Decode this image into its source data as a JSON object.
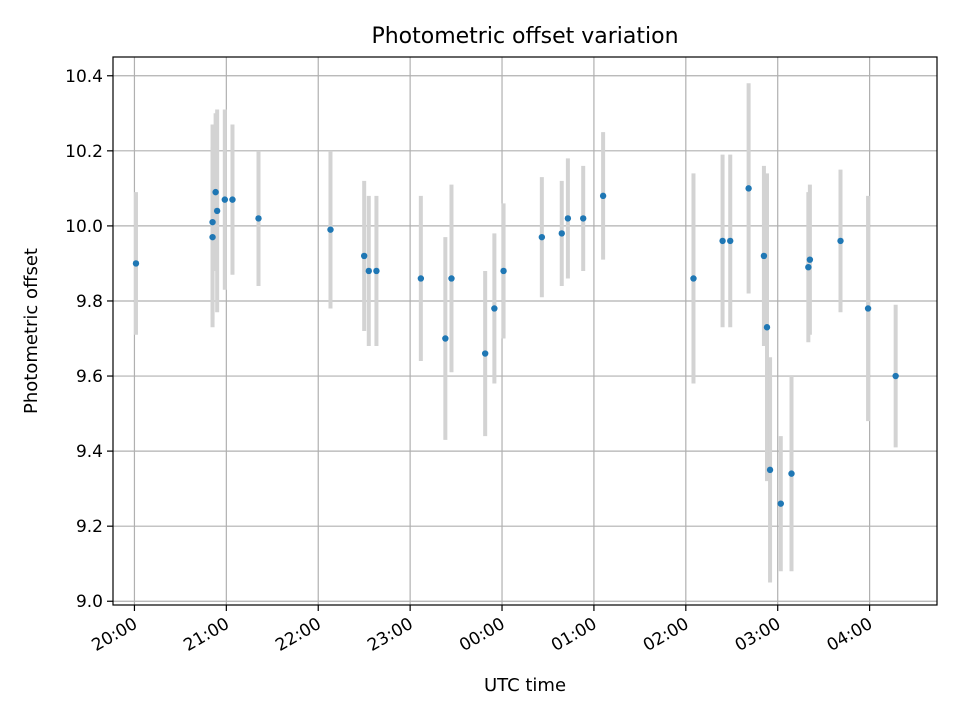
{
  "chart_data": {
    "type": "scatter",
    "title": "Photometric offset variation",
    "xlabel": "UTC time",
    "ylabel": "Photometric offset",
    "x_axis": {
      "start": "19:46",
      "end": "04:44",
      "ticks": [
        "20:00",
        "21:00",
        "22:00",
        "23:00",
        "00:00",
        "01:00",
        "02:00",
        "03:00",
        "04:00"
      ]
    },
    "y_axis": {
      "range": [
        8.99,
        10.45
      ],
      "ticks": [
        "9.0",
        "9.2",
        "9.4",
        "9.6",
        "9.8",
        "10.0",
        "10.2",
        "10.4"
      ]
    },
    "grid": true,
    "colors": {
      "point": "#1f77b4",
      "errorbar": "#d3d3d3",
      "grid": "#b0b0b0"
    },
    "series": [
      {
        "points": [
          {
            "x": "20:01",
            "y": 9.9,
            "yerr": 0.19
          },
          {
            "x": "20:51",
            "y": 9.97,
            "yerr": 0.24
          },
          {
            "x": "20:51",
            "y": 10.01,
            "yerr": 0.26
          },
          {
            "x": "20:53",
            "y": 10.09,
            "yerr": 0.21
          },
          {
            "x": "20:54",
            "y": 10.04,
            "yerr": 0.27
          },
          {
            "x": "20:59",
            "y": 10.07,
            "yerr": 0.24
          },
          {
            "x": "21:04",
            "y": 10.07,
            "yerr": 0.2
          },
          {
            "x": "21:21",
            "y": 10.02,
            "yerr": 0.18
          },
          {
            "x": "22:08",
            "y": 9.99,
            "yerr": 0.21
          },
          {
            "x": "22:30",
            "y": 9.92,
            "yerr": 0.2
          },
          {
            "x": "22:33",
            "y": 9.88,
            "yerr": 0.2
          },
          {
            "x": "22:38",
            "y": 9.88,
            "yerr": 0.2
          },
          {
            "x": "23:07",
            "y": 9.86,
            "yerr": 0.22
          },
          {
            "x": "23:23",
            "y": 9.7,
            "yerr": 0.27
          },
          {
            "x": "23:27",
            "y": 9.86,
            "yerr": 0.25
          },
          {
            "x": "23:49",
            "y": 9.66,
            "yerr": 0.22
          },
          {
            "x": "23:55",
            "y": 9.78,
            "yerr": 0.2
          },
          {
            "x": "00:01",
            "y": 9.88,
            "yerr": 0.18
          },
          {
            "x": "00:26",
            "y": 9.97,
            "yerr": 0.16
          },
          {
            "x": "00:39",
            "y": 9.98,
            "yerr": 0.14
          },
          {
            "x": "00:43",
            "y": 10.02,
            "yerr": 0.16
          },
          {
            "x": "00:53",
            "y": 10.02,
            "yerr": 0.14
          },
          {
            "x": "01:06",
            "y": 10.08,
            "yerr": 0.17
          },
          {
            "x": "02:05",
            "y": 9.86,
            "yerr": 0.28
          },
          {
            "x": "02:24",
            "y": 9.96,
            "yerr": 0.23
          },
          {
            "x": "02:29",
            "y": 9.96,
            "yerr": 0.23
          },
          {
            "x": "02:41",
            "y": 10.1,
            "yerr": 0.28
          },
          {
            "x": "02:51",
            "y": 9.92,
            "yerr": 0.24
          },
          {
            "x": "02:53",
            "y": 9.73,
            "yerr": 0.41
          },
          {
            "x": "02:55",
            "y": 9.35,
            "yerr": 0.3
          },
          {
            "x": "03:02",
            "y": 9.26,
            "yerr": 0.18
          },
          {
            "x": "03:09",
            "y": 9.34,
            "yerr": 0.26
          },
          {
            "x": "03:20",
            "y": 9.89,
            "yerr": 0.2
          },
          {
            "x": "03:21",
            "y": 9.91,
            "yerr": 0.2
          },
          {
            "x": "03:41",
            "y": 9.96,
            "yerr": 0.19
          },
          {
            "x": "03:59",
            "y": 9.78,
            "yerr": 0.3
          },
          {
            "x": "04:17",
            "y": 9.6,
            "yerr": 0.19
          }
        ]
      }
    ]
  }
}
